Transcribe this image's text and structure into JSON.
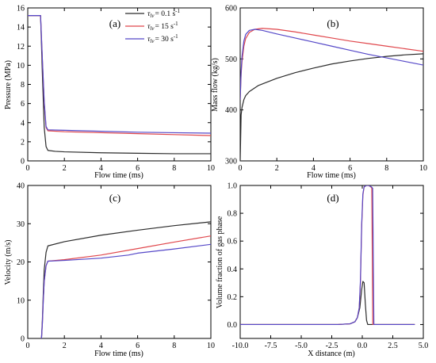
{
  "colors": {
    "black": "#2b2b2b",
    "red": "#e0474c",
    "blue": "#5548c8",
    "axis": "#000000"
  },
  "legend": {
    "entries": [
      {
        "symbol": "τ",
        "sub": "lv",
        "text": "= 0.1 s",
        "sup": "-1",
        "color": "#2b2b2b"
      },
      {
        "symbol": "τ",
        "sub": "lv",
        "text": "= 15 s",
        "sup": "-1",
        "color": "#e0474c"
      },
      {
        "symbol": "τ",
        "sub": "lv",
        "text": "= 30 s",
        "sup": "-1",
        "color": "#5548c8"
      }
    ]
  },
  "chart_data": [
    {
      "panel": "(a)",
      "type": "line",
      "xlabel": "Flow time (ms)",
      "ylabel": "Pressure (MPa)",
      "xlim": [
        0,
        10
      ],
      "ylim": [
        0,
        16
      ],
      "xticks": [
        "0",
        "2",
        "4",
        "6",
        "8",
        "10"
      ],
      "xtick_values": [
        0,
        2,
        4,
        6,
        8,
        10
      ],
      "yticks": [
        "0",
        "2",
        "4",
        "6",
        "8",
        "10",
        "12",
        "14",
        "16"
      ],
      "ytick_values": [
        0,
        2,
        4,
        6,
        8,
        10,
        12,
        14,
        16
      ],
      "series": [
        {
          "color": "#2b2b2b",
          "x": [
            0,
            0.7,
            0.8,
            0.9,
            1.0,
            1.1,
            1.5,
            2,
            4,
            6,
            8,
            10
          ],
          "y": [
            15.2,
            15.2,
            9.0,
            3.5,
            1.5,
            1.1,
            1.0,
            0.95,
            0.85,
            0.8,
            0.75,
            0.75
          ]
        },
        {
          "color": "#e0474c",
          "x": [
            0,
            0.7,
            0.8,
            0.9,
            1.0,
            1.1,
            2,
            4,
            6,
            8,
            10
          ],
          "y": [
            15.2,
            15.2,
            10.5,
            6.0,
            3.5,
            3.15,
            3.05,
            2.95,
            2.85,
            2.75,
            2.65
          ]
        },
        {
          "color": "#5548c8",
          "x": [
            0,
            0.7,
            0.8,
            0.9,
            1.0,
            1.1,
            2,
            4,
            6,
            8,
            10
          ],
          "y": [
            15.2,
            15.2,
            10.6,
            6.2,
            3.6,
            3.25,
            3.2,
            3.1,
            3.0,
            2.95,
            2.9
          ]
        }
      ]
    },
    {
      "panel": "(b)",
      "type": "line",
      "xlabel": "Flow time (ms)",
      "ylabel": "Mass flow (kg/s)",
      "xlim": [
        0,
        10
      ],
      "ylim": [
        300,
        600
      ],
      "xticks": [
        "0",
        "2",
        "4",
        "6",
        "8",
        "10"
      ],
      "xtick_values": [
        0,
        2,
        4,
        6,
        8,
        10
      ],
      "yticks": [
        "300",
        "400",
        "500",
        "600"
      ],
      "ytick_values": [
        300,
        400,
        500,
        600
      ],
      "series": [
        {
          "color": "#2b2b2b",
          "x": [
            0,
            0.05,
            0.1,
            0.2,
            0.3,
            0.5,
            1,
            2,
            3,
            4,
            5,
            6,
            7,
            8,
            9,
            10
          ],
          "y": [
            300,
            390,
            405,
            420,
            428,
            436,
            448,
            462,
            473,
            482,
            490,
            496,
            501,
            505,
            508,
            510
          ]
        },
        {
          "color": "#e0474c",
          "x": [
            0,
            0.05,
            0.1,
            0.2,
            0.3,
            0.5,
            0.8,
            1.2,
            2,
            3,
            4,
            5,
            6,
            7,
            8,
            9,
            10
          ],
          "y": [
            420,
            470,
            495,
            525,
            540,
            552,
            558,
            560,
            558,
            553,
            547,
            541,
            535,
            530,
            525,
            520,
            515
          ]
        },
        {
          "color": "#5548c8",
          "x": [
            0,
            0.05,
            0.1,
            0.2,
            0.3,
            0.5,
            0.8,
            1.2,
            2,
            3,
            4,
            5,
            6,
            7,
            8,
            9,
            10
          ],
          "y": [
            420,
            475,
            505,
            535,
            548,
            556,
            558,
            556,
            549,
            541,
            533,
            525,
            517,
            509,
            502,
            495,
            488
          ]
        }
      ]
    },
    {
      "panel": "(c)",
      "type": "line",
      "xlabel": "Flow time (ms)",
      "ylabel": "Velocity (m/s)",
      "xlim": [
        0,
        10
      ],
      "ylim": [
        0,
        40
      ],
      "xticks": [
        "0",
        "2",
        "4",
        "6",
        "8",
        "10"
      ],
      "xtick_values": [
        0,
        2,
        4,
        6,
        8,
        10
      ],
      "yticks": [
        "0",
        "10",
        "20",
        "30",
        "40"
      ],
      "ytick_values": [
        0,
        10,
        20,
        30,
        40
      ],
      "series": [
        {
          "color": "#2b2b2b",
          "x": [
            0.75,
            0.8,
            0.85,
            0.9,
            1.0,
            1.1,
            2,
            4,
            6,
            8,
            10
          ],
          "y": [
            0,
            5,
            12,
            18,
            22.5,
            24.2,
            25.3,
            27.0,
            28.3,
            29.5,
            30.5
          ]
        },
        {
          "color": "#e0474c",
          "x": [
            0.75,
            0.8,
            0.85,
            0.9,
            1.0,
            1.1,
            2,
            4,
            6,
            8,
            10
          ],
          "y": [
            0,
            4,
            10,
            15,
            19,
            20.2,
            20.6,
            21.8,
            23.5,
            25.2,
            26.8
          ]
        },
        {
          "color": "#5548c8",
          "x": [
            0.75,
            0.8,
            0.85,
            0.9,
            1.0,
            1.1,
            2,
            4,
            5.5,
            6,
            8,
            10
          ],
          "y": [
            0,
            4,
            10,
            15,
            19,
            20.2,
            20.4,
            21.0,
            21.8,
            22.3,
            23.4,
            24.6
          ]
        }
      ]
    },
    {
      "panel": "(d)",
      "type": "line",
      "xlabel": "X distance (m)",
      "ylabel": "Volume fraction of gas phase",
      "xlim": [
        -10,
        5
      ],
      "ylim": [
        -0.1,
        1.0
      ],
      "xticks": [
        "-10.0",
        "-7.5",
        "-5.0",
        "-2.5",
        "0.0",
        "2.5",
        "5.0"
      ],
      "xtick_values": [
        -10,
        -7.5,
        -5,
        -2.5,
        0,
        2.5,
        5
      ],
      "yticks": [
        "0.0",
        "0.2",
        "0.4",
        "0.6",
        "0.8",
        "1.0"
      ],
      "ytick_values": [
        0,
        0.2,
        0.4,
        0.6,
        0.8,
        1.0
      ],
      "series": [
        {
          "color": "#2b2b2b",
          "x": [
            -10,
            -2,
            -1.0,
            -0.6,
            -0.4,
            -0.2,
            -0.05,
            0.05,
            0.15,
            0.25,
            0.35,
            0.45,
            4.3
          ],
          "y": [
            0,
            0,
            0.005,
            0.02,
            0.05,
            0.12,
            0.25,
            0.31,
            0.3,
            0.15,
            0.03,
            0,
            0
          ]
        },
        {
          "color": "#e0474c",
          "x": [
            -10,
            -2,
            -1.0,
            -0.6,
            -0.4,
            -0.25,
            -0.15,
            -0.05,
            0.05,
            0.15,
            0.35,
            0.5,
            0.7,
            0.78,
            0.82,
            0.86,
            4.3
          ],
          "y": [
            0,
            0,
            0.005,
            0.02,
            0.05,
            0.12,
            0.3,
            0.7,
            0.93,
            0.99,
            1.0,
            1.0,
            0.99,
            0.98,
            0.5,
            0,
            0
          ]
        },
        {
          "color": "#5548c8",
          "x": [
            -10,
            -2,
            -1.0,
            -0.6,
            -0.4,
            -0.25,
            -0.15,
            -0.05,
            0.05,
            0.15,
            0.35,
            0.5,
            0.75,
            0.85,
            0.9,
            0.95,
            4.3
          ],
          "y": [
            0,
            0,
            0.005,
            0.02,
            0.05,
            0.12,
            0.32,
            0.72,
            0.94,
            0.99,
            1.0,
            1.0,
            0.99,
            0.98,
            0.5,
            0,
            0
          ]
        }
      ]
    }
  ]
}
